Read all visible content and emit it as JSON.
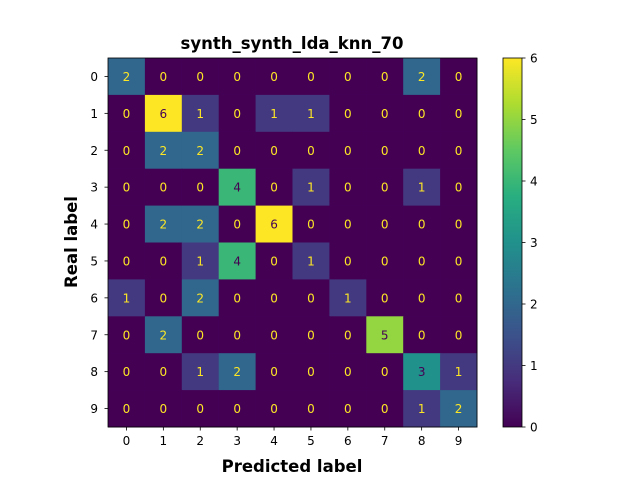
{
  "chart_data": {
    "type": "heatmap",
    "title": "synth_synth_lda_knn_70",
    "xlabel": "Predicted label",
    "ylabel": "Real label",
    "x_categories": [
      "0",
      "1",
      "2",
      "3",
      "4",
      "5",
      "6",
      "7",
      "8",
      "9"
    ],
    "y_categories": [
      "0",
      "1",
      "2",
      "3",
      "4",
      "5",
      "6",
      "7",
      "8",
      "9"
    ],
    "values": [
      [
        2,
        0,
        0,
        0,
        0,
        0,
        0,
        0,
        2,
        0
      ],
      [
        0,
        6,
        1,
        0,
        1,
        1,
        0,
        0,
        0,
        0
      ],
      [
        0,
        2,
        2,
        0,
        0,
        0,
        0,
        0,
        0,
        0
      ],
      [
        0,
        0,
        0,
        4,
        0,
        1,
        0,
        0,
        1,
        0
      ],
      [
        0,
        2,
        2,
        0,
        6,
        0,
        0,
        0,
        0,
        0
      ],
      [
        0,
        0,
        1,
        4,
        0,
        1,
        0,
        0,
        0,
        0
      ],
      [
        1,
        0,
        2,
        0,
        0,
        0,
        1,
        0,
        0,
        0
      ],
      [
        0,
        2,
        0,
        0,
        0,
        0,
        0,
        5,
        0,
        0
      ],
      [
        0,
        0,
        1,
        2,
        0,
        0,
        0,
        0,
        3,
        1
      ],
      [
        0,
        0,
        0,
        0,
        0,
        0,
        0,
        0,
        1,
        2
      ]
    ],
    "colormap": "viridis",
    "colorbar": {
      "min": 0,
      "max": 6,
      "ticks": [
        "0",
        "1",
        "2",
        "3",
        "4",
        "5",
        "6"
      ]
    },
    "text_color_low": "#fde725",
    "text_color_high": "#440154"
  }
}
